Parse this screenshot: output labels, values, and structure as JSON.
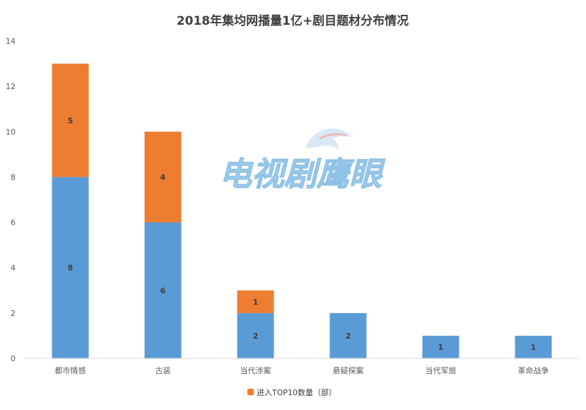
{
  "chart_data": {
    "type": "bar",
    "stacked": true,
    "title": "2018年集均网播量1亿+剧目题材分布情况",
    "categories": [
      "都市情感",
      "古装",
      "当代涉案",
      "悬疑探案",
      "当代军旅",
      "革命战争"
    ],
    "series": [
      {
        "name": "",
        "color": "#5b9bd5",
        "values": [
          8,
          6,
          2,
          2,
          1,
          1
        ]
      },
      {
        "name": "进入TOP10数量（部）",
        "color": "#ed7d31",
        "values": [
          5,
          4,
          1,
          0,
          0,
          0
        ]
      }
    ],
    "ylim": [
      0,
      14
    ],
    "yticks": [
      0,
      2,
      4,
      6,
      8,
      10,
      12,
      14
    ],
    "grid": false,
    "legend": "bottom",
    "xlabel": "",
    "ylabel": ""
  },
  "watermark": {
    "text": "电视剧鹰眼",
    "color": "#aed3ee"
  }
}
